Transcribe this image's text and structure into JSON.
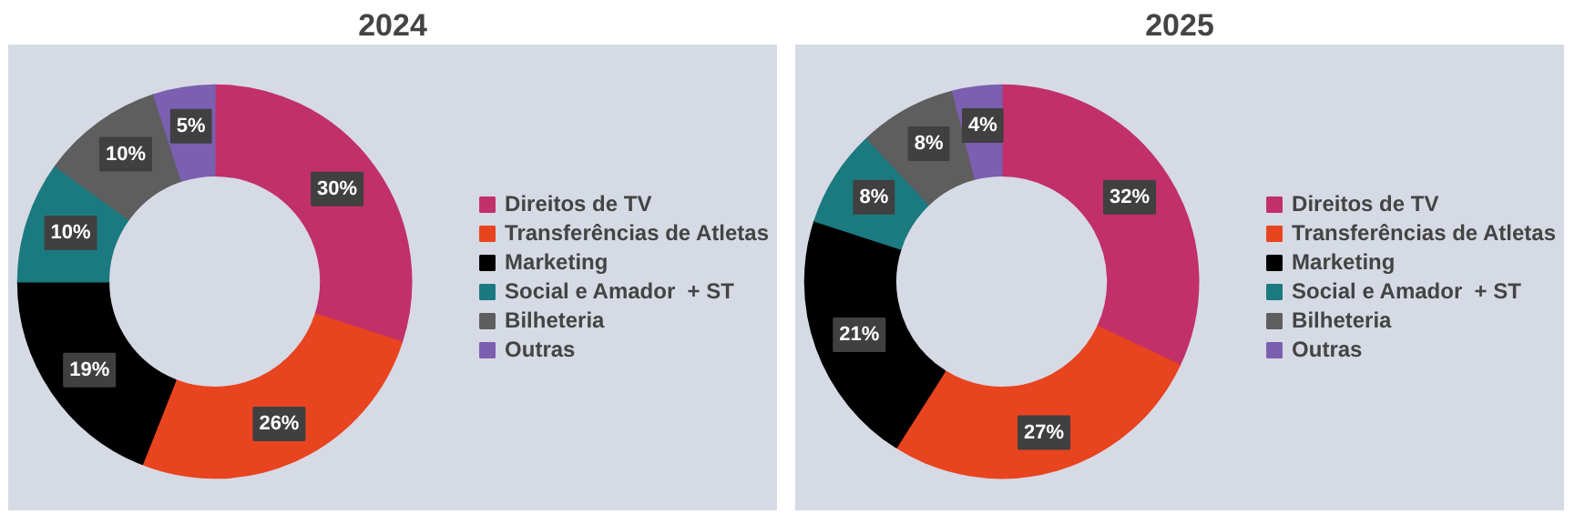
{
  "chart_data": [
    {
      "type": "donut",
      "title": "2024",
      "categories": [
        "Direitos de TV",
        "Transferências de Atletas",
        "Marketing",
        "Social e Amador  + ST",
        "Bilheteria",
        "Outras"
      ],
      "values": [
        30,
        26,
        19,
        10,
        10,
        5
      ],
      "value_labels": [
        "30%",
        "26%",
        "19%",
        "10%",
        "10%",
        "5%"
      ],
      "colors": [
        "#c2306a",
        "#e8441f",
        "#000000",
        "#1b7a80",
        "#5e5e5e",
        "#7b5fb0"
      ],
      "legend": "right"
    },
    {
      "type": "donut",
      "title": "2025",
      "categories": [
        "Direitos de TV",
        "Transferências de Atletas",
        "Marketing",
        "Social e Amador  + ST",
        "Bilheteria",
        "Outras"
      ],
      "values": [
        32,
        27,
        21,
        8,
        8,
        4
      ],
      "value_labels": [
        "32%",
        "27%",
        "21%",
        "8%",
        "8%",
        "4%"
      ],
      "colors": [
        "#c2306a",
        "#e8441f",
        "#000000",
        "#1b7a80",
        "#5e5e5e",
        "#7b5fb0"
      ],
      "legend": "right"
    }
  ]
}
